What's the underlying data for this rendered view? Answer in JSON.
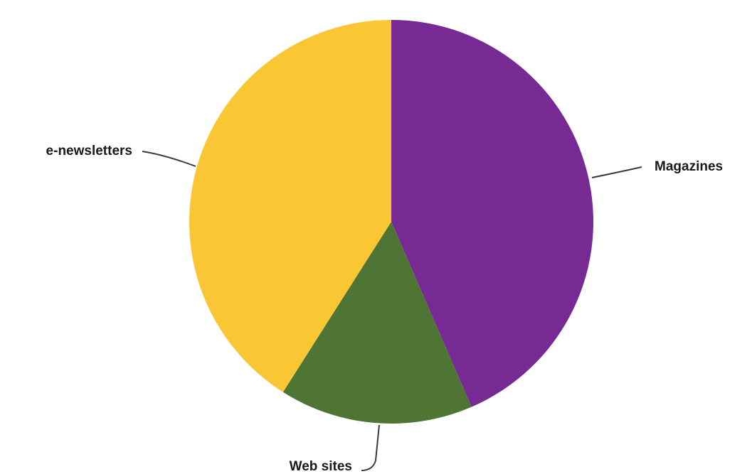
{
  "chart_data": {
    "type": "pie",
    "slices": [
      {
        "label": "Magazines",
        "value": 43.5,
        "color": "#772a93"
      },
      {
        "label": "Web sites",
        "value": 15.5,
        "color": "#4e7533"
      },
      {
        "label": "e-newsletters",
        "value": 41.0,
        "color": "#fbc634"
      }
    ],
    "start": "12 o'clock",
    "direction": "clockwise",
    "legend": "none",
    "labels": "outside with leader lines"
  }
}
